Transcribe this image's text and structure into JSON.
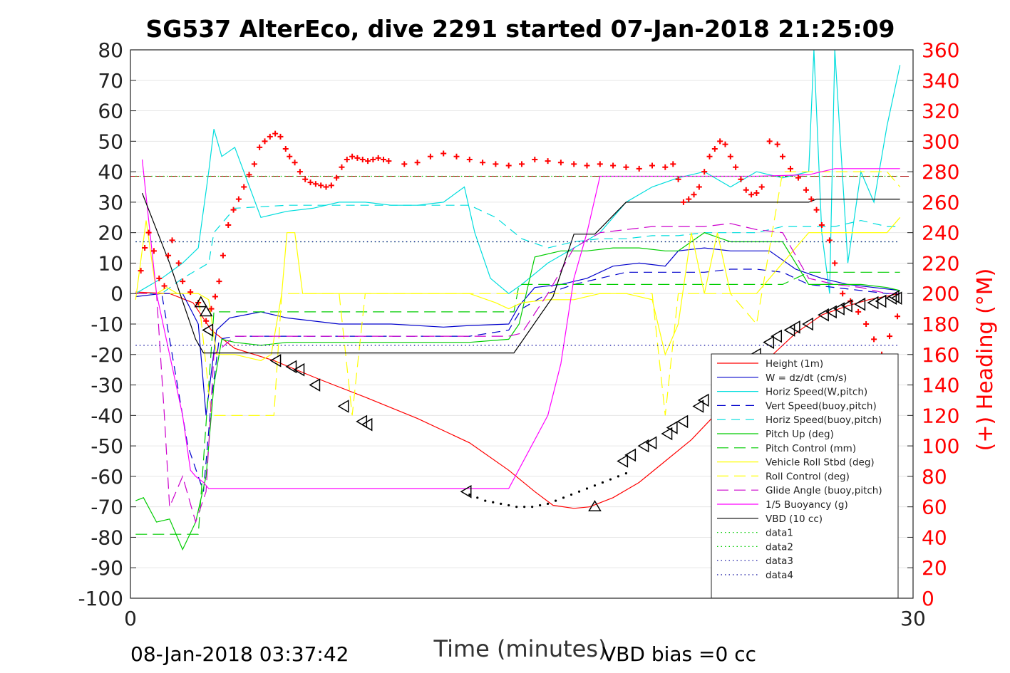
{
  "chart_data": {
    "type": "line",
    "title": "SG537 AlterEco, dive 2291 started 07-Jan-2018 21:25:09",
    "xlabel": "Time (minutes)",
    "ylabel_right": "(+) Heading (°M)",
    "xlim": [
      0,
      30
    ],
    "ylim": [
      -100,
      80
    ],
    "ylim_right": [
      0,
      360
    ],
    "x_ticks": [
      "0",
      "30"
    ],
    "y_ticks": [
      "80",
      "70",
      "60",
      "50",
      "40",
      "30",
      "20",
      "10",
      "0",
      "-10",
      "-20",
      "-30",
      "-40",
      "-50",
      "-60",
      "-70",
      "-80",
      "-90",
      "-100"
    ],
    "y_ticks_right": [
      "360",
      "340",
      "320",
      "300",
      "280",
      "260",
      "240",
      "220",
      "200",
      "180",
      "160",
      "140",
      "120",
      "100",
      "80",
      "60",
      "40",
      "20",
      "0"
    ],
    "grid": "horizontal",
    "legend_position": "bottom-right",
    "footer_left": "08-Jan-2018 03:37:42",
    "footer_right": "VBD bias =0 cc",
    "series": [
      {
        "name": "Height (1m)",
        "color": "#ff0000",
        "dash": "solid",
        "x": [
          0.2,
          1.5,
          2.4,
          3.1,
          4.0,
          5.5,
          7.2,
          9.0,
          11.0,
          13.0,
          14.5,
          15.5,
          16.2,
          17.0,
          17.6,
          18.5,
          19.5,
          20.5,
          21.5,
          22.5,
          23.5,
          24.5,
          25.5,
          26.5,
          27.5,
          28.3,
          29.5
        ],
        "y": [
          0.5,
          0,
          -3,
          -12,
          -18,
          -22,
          -28,
          -34,
          -41,
          -49,
          -58,
          -65,
          -69.5,
          -70.5,
          -70,
          -67,
          -62,
          -55,
          -48,
          -39,
          -30,
          -21,
          -13,
          -7,
          -4,
          -2,
          0
        ]
      },
      {
        "name": "W = dz/dt (cm/s)",
        "color": "#0000cc",
        "dash": "solid",
        "x": [
          0.2,
          1.2,
          2.0,
          2.6,
          2.9,
          3.3,
          3.8,
          5.0,
          6.0,
          8.0,
          10.0,
          12.0,
          13.0,
          14.5,
          14.9,
          15.5,
          16.5,
          17.5,
          18.5,
          19.5,
          20.5,
          21.0,
          22.0,
          23.0,
          24.5,
          25.5,
          26.5,
          27.5,
          28.5,
          29.5
        ],
        "y": [
          -1,
          0,
          0,
          -10,
          -40,
          -12,
          -8,
          -6,
          -8,
          -10,
          -10,
          -11,
          -10.5,
          -10,
          -4,
          2,
          3,
          5,
          9,
          10,
          9,
          14,
          15,
          14,
          14,
          8,
          5,
          3,
          2,
          1
        ]
      },
      {
        "name": "Horiz Speed(W,pitch)",
        "color": "#00dddd",
        "dash": "solid",
        "x": [
          0.2,
          1.2,
          2.0,
          2.6,
          3.0,
          3.2,
          3.5,
          4.0,
          5.0,
          6.0,
          7.0,
          8.0,
          9.0,
          10.0,
          11.0,
          12.0,
          12.8,
          13.2,
          13.8,
          14.5,
          15.0,
          16.0,
          17.0,
          18.0,
          19.0,
          20.0,
          21.0,
          22.0,
          23.0,
          24.0,
          25.0,
          26.0,
          26.2,
          26.5,
          26.8,
          27.0,
          27.5,
          28.0,
          28.5,
          29.0,
          29.5
        ],
        "y": [
          0,
          5,
          10,
          15,
          40,
          54,
          45,
          48,
          25,
          27,
          28,
          30,
          30,
          29,
          29,
          30,
          35,
          20,
          5,
          0,
          3,
          10,
          15,
          20,
          30,
          35,
          38,
          40,
          35,
          40,
          38,
          40,
          80,
          20,
          0,
          80,
          10,
          40,
          30,
          55,
          75
        ]
      },
      {
        "name": "Vert Speed(buoy,pitch)",
        "color": "#0000cc",
        "dash": "12,8",
        "x": [
          0.2,
          1.2,
          1.5,
          2.2,
          2.8,
          3.1,
          3.4,
          4.0,
          6.0,
          8.0,
          10.0,
          12.0,
          13.0,
          14.5,
          15.0,
          16.0,
          17.0,
          18.0,
          19.0,
          20.0,
          21.0,
          22.0,
          23.0,
          24.0,
          25.0,
          26.0,
          27.0,
          28.0,
          29.0,
          29.5
        ],
        "y": [
          0,
          0,
          -15,
          -50,
          -65,
          -35,
          -15,
          -14,
          -14,
          -14,
          -14,
          -14,
          -14,
          -12,
          -5,
          0,
          3,
          5,
          7,
          7,
          7,
          7,
          8,
          8,
          7,
          3,
          2,
          1,
          0,
          0
        ]
      },
      {
        "name": "Horiz Speed(buoy,pitch)",
        "color": "#00dddd",
        "dash": "12,8",
        "x": [
          0.2,
          1.2,
          2.0,
          3.0,
          3.2,
          4.0,
          6.0,
          8.0,
          10.0,
          12.0,
          13.0,
          14.0,
          15.0,
          16.0,
          17.0,
          18.0,
          19.0,
          20.0,
          21.0,
          22.0,
          23.0,
          24.0,
          25.0,
          26.0,
          27.0,
          28.0,
          29.0,
          29.5
        ],
        "y": [
          0,
          0,
          5,
          10,
          20,
          28,
          29,
          29,
          29,
          29,
          29,
          25,
          18,
          15,
          17,
          18,
          18,
          19,
          19,
          20,
          20,
          20,
          22,
          22,
          22,
          24,
          22,
          22
        ]
      },
      {
        "name": "Pitch Up (deg)",
        "color": "#00cc00",
        "dash": "solid",
        "x": [
          0.2,
          0.5,
          1.0,
          1.5,
          2.0,
          2.5,
          2.9,
          3.2,
          3.5,
          4.0,
          5.0,
          6.0,
          8.0,
          10.0,
          12.0,
          13.0,
          14.5,
          14.9,
          15.5,
          16.5,
          17.5,
          18.5,
          19.5,
          20.5,
          21.0,
          22.0,
          23.0,
          24.0,
          25.0,
          26.0,
          27.0,
          28.0,
          29.0,
          29.5
        ],
        "y": [
          -68,
          -67,
          -75,
          -74,
          -84,
          -75,
          -60,
          -30,
          -15,
          -16,
          -17,
          -16,
          -16,
          -16,
          -16,
          -16,
          -15,
          -10,
          12,
          14,
          14,
          15,
          15,
          14,
          14,
          20,
          17,
          17,
          17,
          3,
          3,
          3,
          2,
          1
        ]
      },
      {
        "name": "Pitch Control (mm)",
        "color": "#00cc00",
        "dash": "16,8",
        "x": [
          0.2,
          2.2,
          2.6,
          3.2,
          14.7,
          14.9,
          18.0,
          19.0,
          20.0,
          21.0,
          22.0,
          23.0,
          24.0,
          25.0,
          26.0,
          27.0,
          29.5
        ],
        "y": [
          -79,
          -79,
          -79,
          -6,
          -6,
          3,
          3,
          3,
          3,
          3,
          3,
          3,
          3,
          3,
          7,
          7,
          7
        ]
      },
      {
        "name": "Vehicle Roll Stbd (deg)",
        "color": "#ffff00",
        "dash": "solid",
        "x": [
          0.2,
          0.6,
          1.0,
          1.4,
          1.8,
          2.2,
          2.6,
          3.0,
          3.3,
          4.0,
          5.0,
          5.4,
          5.8,
          6.0,
          6.3,
          6.6,
          7.0,
          8.0,
          9.0,
          10.0,
          11.0,
          12.0,
          13.0,
          14.0,
          14.5,
          15.0,
          16.0,
          17.0,
          18.0,
          19.0,
          20.0,
          20.5,
          21.0,
          21.5,
          22.0,
          22.5,
          23.0,
          24.0,
          25.0,
          26.0,
          27.0,
          28.0,
          29.0,
          29.5
        ],
        "y": [
          -2,
          24,
          0,
          2,
          0,
          0,
          0,
          -2,
          -20,
          -20,
          -22,
          -20,
          0,
          20,
          20,
          0,
          0,
          0,
          0,
          0,
          0,
          0,
          0,
          -3,
          -5,
          -3,
          -2,
          -2,
          0,
          0,
          -2,
          -20,
          -10,
          20,
          0,
          20,
          0,
          0,
          10,
          20,
          20,
          20,
          20,
          25
        ]
      },
      {
        "name": "Roll Control (deg)",
        "color": "#ffff00",
        "dash": "16,8",
        "x": [
          0.2,
          2.6,
          3.1,
          5.5,
          5.8,
          6.2,
          6.6,
          7.5,
          8.0,
          8.5,
          9.0,
          9.5,
          10.0,
          11.0,
          12.0,
          13.0,
          14.0,
          14.5,
          15.0,
          16.0,
          17.0,
          18.0,
          19.0,
          20.0,
          20.5,
          21.0,
          22.0,
          23.0,
          24.0,
          25.0,
          26.0,
          27.0,
          28.0,
          29.0,
          29.5
        ],
        "y": [
          0,
          0,
          -40,
          -40,
          0,
          0,
          0,
          0,
          0,
          -40,
          0,
          0,
          0,
          0,
          0,
          0,
          0,
          0,
          0,
          0,
          0,
          0,
          0,
          0,
          -40,
          0,
          0,
          0,
          -10,
          40,
          40,
          40,
          40,
          40,
          35
        ]
      },
      {
        "name": "Glide Angle (buoy,pitch)",
        "color": "#cc00cc",
        "dash": "16,8",
        "x": [
          0.2,
          1.0,
          1.3,
          1.5,
          2.0,
          2.5,
          2.9,
          3.2,
          4.0,
          6.0,
          8.0,
          10.0,
          12.0,
          13.0,
          14.5,
          15.0,
          16.0,
          17.0,
          18.0,
          19.0,
          20.0,
          21.0,
          22.0,
          23.0,
          24.0,
          25.0,
          26.0,
          27.0,
          28.0,
          29.0,
          29.5
        ],
        "y": [
          0,
          0,
          -40,
          -70,
          -60,
          -75,
          -65,
          -20,
          -14,
          -14,
          -14,
          -14,
          -14,
          -14,
          -14,
          -13,
          0,
          15,
          20,
          21,
          22,
          22,
          22,
          23,
          21,
          20,
          5,
          3,
          2,
          0,
          0
        ]
      },
      {
        "name": "1/5 Buoyancy (g)",
        "color": "#ff00ff",
        "dash": "solid",
        "x": [
          0.45,
          1.0,
          1.5,
          2.0,
          2.3,
          2.5,
          2.8,
          3.0,
          8.0,
          12.0,
          14.5,
          16.0,
          16.5,
          17.0,
          17.5,
          18.0,
          20.0,
          24.0,
          26.0,
          27.0,
          29.5
        ],
        "y": [
          44,
          0,
          -20,
          -40,
          -58,
          -60,
          -62,
          -64,
          -64,
          -64,
          -64,
          -40,
          -23,
          5,
          20,
          38.5,
          38.5,
          38.5,
          39,
          41,
          41
        ]
      },
      {
        "name": "VBD (10 cc)",
        "color": "#000000",
        "dash": "solid",
        "x": [
          0.45,
          1.5,
          2.5,
          2.8,
          14.7,
          16.2,
          17.0,
          17.8,
          19.0,
          20.0,
          26.0,
          26.3,
          29.5
        ],
        "y": [
          33,
          10,
          -15,
          -19.5,
          -19.5,
          -1,
          19.5,
          19.5,
          30,
          30,
          30,
          31,
          31
        ]
      },
      {
        "name": "data1",
        "color": "#00cc00",
        "dash": "1.5,4",
        "x": [
          0.2,
          29.5
        ],
        "y": [
          38.5,
          38.5
        ]
      },
      {
        "name": "data2",
        "color": "#00cc00",
        "dash": "1.5,4",
        "x": [
          0.2,
          29.5
        ],
        "y": [
          17,
          17
        ]
      },
      {
        "name": "data3",
        "color": "#000099",
        "dash": "1.5,4",
        "x": [
          0.2,
          29.5
        ],
        "y": [
          17,
          17
        ]
      },
      {
        "name": "data4",
        "color": "#000099",
        "dash": "1.5,4",
        "x": [
          0.2,
          29.5
        ],
        "y": [
          -17,
          -17
        ]
      }
    ],
    "reference_line": {
      "color": "#aa0000",
      "dash": "12,6",
      "y": 38.5
    },
    "heading": {
      "name": "(+) Heading (°M)",
      "color": "#ff0000",
      "axis": "right",
      "x": [
        0.4,
        0.55,
        0.7,
        0.9,
        1.1,
        1.3,
        1.45,
        1.6,
        1.85,
        2.0,
        2.3,
        2.6,
        2.9,
        3.1,
        3.25,
        3.4,
        3.55,
        3.75,
        3.95,
        4.15,
        4.35,
        4.55,
        4.75,
        4.95,
        5.15,
        5.35,
        5.55,
        5.75,
        5.95,
        6.1,
        6.3,
        6.5,
        6.7,
        6.9,
        7.1,
        7.3,
        7.5,
        7.7,
        7.9,
        8.1,
        8.3,
        8.5,
        8.7,
        8.9,
        9.1,
        9.3,
        9.5,
        9.7,
        9.9,
        10.5,
        11.0,
        11.5,
        12.0,
        12.5,
        13.0,
        13.5,
        14.0,
        14.5,
        15.0,
        15.5,
        16.0,
        16.5,
        17.0,
        17.5,
        18.0,
        18.5,
        19.0,
        19.5,
        20.0,
        20.5,
        20.8,
        21.0,
        21.2,
        21.4,
        21.6,
        21.8,
        22.0,
        22.2,
        22.4,
        22.6,
        22.8,
        23.0,
        23.2,
        23.4,
        23.6,
        23.8,
        24.0,
        24.2,
        24.5,
        24.8,
        25.0,
        25.3,
        25.6,
        25.9,
        26.1,
        26.3,
        26.5,
        26.8,
        27.0,
        27.3,
        27.6,
        27.9,
        28.2,
        28.5,
        28.8,
        29.1,
        29.4
      ],
      "y": [
        215,
        230,
        240,
        228,
        210,
        205,
        225,
        235,
        220,
        208,
        201,
        194,
        182,
        190,
        198,
        208,
        225,
        245,
        255,
        262,
        270,
        278,
        285,
        296,
        300,
        303,
        305,
        303,
        295,
        290,
        286,
        280,
        275,
        273,
        272,
        271,
        270,
        271,
        276,
        283,
        288,
        290,
        289,
        288,
        287,
        288,
        289,
        288,
        287,
        285,
        286,
        290,
        292,
        290,
        288,
        286,
        285,
        284,
        285,
        288,
        287,
        286,
        285,
        284,
        285,
        284,
        283,
        282,
        284,
        283,
        285,
        275,
        260,
        262,
        265,
        270,
        280,
        290,
        295,
        300,
        298,
        290,
        283,
        275,
        268,
        265,
        266,
        270,
        300,
        298,
        290,
        282,
        276,
        268,
        262,
        255,
        245,
        235,
        220,
        200,
        195,
        188,
        180,
        170,
        160,
        172,
        185
      ]
    },
    "markers": {
      "triangle_up": [
        [
          2.7,
          -3
        ],
        [
          2.9,
          -6
        ],
        [
          17.8,
          -70
        ]
      ],
      "triangle_left": [
        [
          3.0,
          -12
        ],
        [
          5.6,
          -22
        ],
        [
          6.2,
          -24
        ],
        [
          6.5,
          -25
        ],
        [
          7.1,
          -30
        ],
        [
          8.2,
          -37
        ],
        [
          8.9,
          -42
        ],
        [
          9.1,
          -43
        ],
        [
          12.9,
          -65
        ],
        [
          18.9,
          -55
        ],
        [
          19.2,
          -53
        ],
        [
          19.7,
          -50
        ],
        [
          20.0,
          -49
        ],
        [
          20.6,
          -46
        ],
        [
          20.8,
          -44
        ],
        [
          21.2,
          -42
        ],
        [
          21.8,
          -37
        ],
        [
          22.0,
          -35
        ],
        [
          22.7,
          -30
        ],
        [
          23.4,
          -25
        ],
        [
          24.0,
          -20
        ],
        [
          24.5,
          -16
        ],
        [
          24.8,
          -14
        ],
        [
          25.3,
          -12
        ],
        [
          25.5,
          -11
        ],
        [
          26.0,
          -10
        ],
        [
          26.6,
          -7
        ],
        [
          26.9,
          -6
        ],
        [
          27.2,
          -5
        ],
        [
          27.5,
          -4
        ],
        [
          28.0,
          -3.5
        ],
        [
          28.5,
          -3
        ],
        [
          28.8,
          -2.5
        ],
        [
          29.2,
          -1.5
        ],
        [
          29.3,
          -1
        ],
        [
          29.4,
          -1.5
        ]
      ]
    },
    "dot_markers": {
      "x": [
        13.0,
        13.3,
        13.6,
        13.9,
        14.2,
        14.5,
        14.8,
        15.1,
        15.4,
        15.7,
        16.0,
        16.3,
        16.6,
        16.9,
        17.2,
        17.5,
        17.8,
        18.1,
        18.4,
        18.7,
        19.0
      ],
      "y": [
        -66,
        -67,
        -68,
        -68.5,
        -69,
        -69.5,
        -70,
        -70,
        -70,
        -69.5,
        -69,
        -68,
        -67,
        -66,
        -65,
        -64,
        -63,
        -62,
        -61,
        -60,
        -59
      ]
    }
  }
}
